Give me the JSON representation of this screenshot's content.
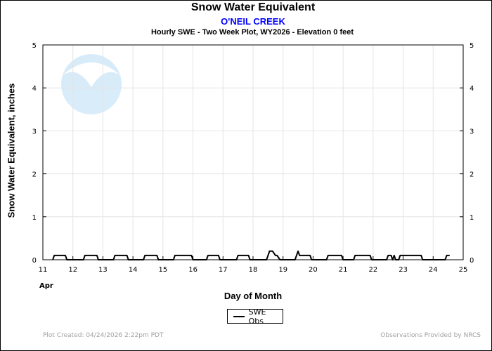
{
  "title": "Snow Water Equivalent",
  "station": "O'NEIL CREEK",
  "subtitle": "Hourly SWE - Two Week Plot, WY2026 -  Elevation 0 feet",
  "logo_text": "NOAA",
  "footer_left": "Plot Created: 04/24/2026 2:22pm PDT",
  "footer_right": "Observations Provided by NRCS",
  "chart_data": {
    "type": "line",
    "xlabel": "Day of Month",
    "ylabel": "Snow Water Equivalent, inches",
    "x_month_label": "Apr",
    "xlim": [
      11,
      25
    ],
    "ylim": [
      0,
      5
    ],
    "x_ticks": [
      11,
      12,
      13,
      14,
      15,
      16,
      17,
      18,
      19,
      20,
      21,
      22,
      23,
      24,
      25
    ],
    "y_ticks": [
      0,
      1,
      2,
      3,
      4,
      5
    ],
    "grid": true,
    "legend": "bottom-center",
    "series": [
      {
        "name": "SWE Obs",
        "color": "#000000",
        "x": [
          11.33,
          11.38,
          11.75,
          11.8,
          12.35,
          12.4,
          12.8,
          12.85,
          13.35,
          13.4,
          13.8,
          13.85,
          14.35,
          14.4,
          14.8,
          14.85,
          15.35,
          15.4,
          15.95,
          16.0,
          16.45,
          16.5,
          16.85,
          16.9,
          17.45,
          17.5,
          17.85,
          17.9,
          18.45,
          18.5,
          18.55,
          18.65,
          18.75,
          18.8,
          18.9,
          19.4,
          19.45,
          19.5,
          19.55,
          19.6,
          19.9,
          19.95,
          20.45,
          20.5,
          20.95,
          21.0,
          21.35,
          21.4,
          21.9,
          21.95,
          22.45,
          22.5,
          22.6,
          22.65,
          22.7,
          22.75,
          22.85,
          22.9,
          23.6,
          23.65,
          24.4,
          24.45,
          24.55
        ],
        "y": [
          0.0,
          0.1,
          0.1,
          0.0,
          0.0,
          0.1,
          0.1,
          0.0,
          0.0,
          0.1,
          0.1,
          0.0,
          0.0,
          0.1,
          0.1,
          0.0,
          0.0,
          0.1,
          0.1,
          0.0,
          0.0,
          0.1,
          0.1,
          0.0,
          0.0,
          0.1,
          0.1,
          0.0,
          0.0,
          0.1,
          0.2,
          0.2,
          0.1,
          0.1,
          0.0,
          0.0,
          0.1,
          0.2,
          0.1,
          0.1,
          0.1,
          0.0,
          0.0,
          0.1,
          0.1,
          0.0,
          0.0,
          0.1,
          0.1,
          0.0,
          0.0,
          0.1,
          0.1,
          0.0,
          0.1,
          0.0,
          0.0,
          0.1,
          0.1,
          0.0,
          0.0,
          0.1,
          0.1
        ]
      }
    ]
  }
}
